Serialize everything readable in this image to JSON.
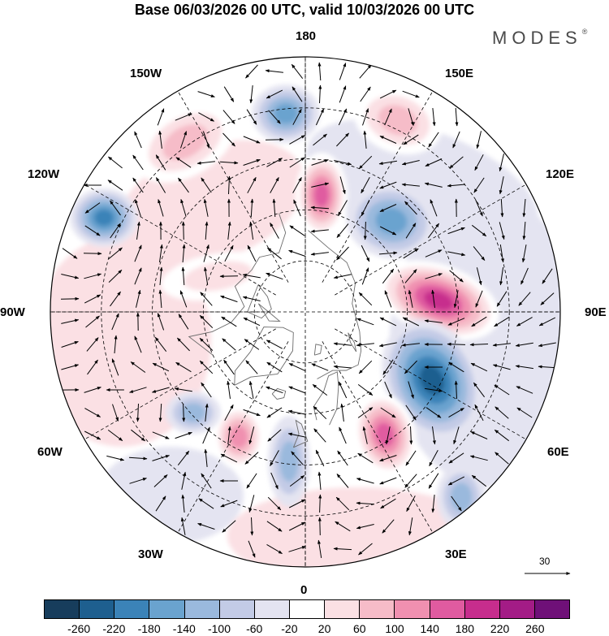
{
  "title": "Base 06/03/2026 00 UTC, valid 10/03/2026 00 UTC",
  "brand": "MODES",
  "brand_mark": "®",
  "longitude_labels": [
    {
      "id": "180",
      "text": "180"
    },
    {
      "id": "150E",
      "text": "150E"
    },
    {
      "id": "120E",
      "text": "120E"
    },
    {
      "id": "90E",
      "text": "90E"
    },
    {
      "id": "60E",
      "text": "60E"
    },
    {
      "id": "30E",
      "text": "30E"
    },
    {
      "id": "0",
      "text": "0"
    },
    {
      "id": "30W",
      "text": "30W"
    },
    {
      "id": "60W",
      "text": "60W"
    },
    {
      "id": "90W",
      "text": "90W"
    },
    {
      "id": "120W",
      "text": "120W"
    },
    {
      "id": "150W",
      "text": "150W"
    }
  ],
  "vector_scale": {
    "label": "30"
  },
  "colorbar": {
    "colors": [
      "#173d5c",
      "#1e5f8f",
      "#3b83b8",
      "#6aa3cf",
      "#9ab9dd",
      "#c3cbe6",
      "#e4e4f1",
      "#ffffff",
      "#fbe0e4",
      "#f6bcc8",
      "#f090b0",
      "#e05ba0",
      "#c72d8d",
      "#a31c86",
      "#6f1078"
    ],
    "labels": [
      "-260",
      "-220",
      "-180",
      "-140",
      "-100",
      "-60",
      "-20",
      "20",
      "60",
      "100",
      "140",
      "180",
      "220",
      "260"
    ]
  },
  "anomalies": [
    {
      "id": "pos-eurasia-90e",
      "value": 240
    },
    {
      "id": "neg-siberia-60e",
      "value": -230
    },
    {
      "id": "pos-scandinavia",
      "value": 190
    },
    {
      "id": "neg-kamchatka",
      "value": -170
    },
    {
      "id": "pos-chukotka",
      "value": 200
    },
    {
      "id": "neg-alaska-gulf",
      "value": -150
    },
    {
      "id": "pos-pacific-150w",
      "value": 110
    },
    {
      "id": "neg-canada-120w",
      "value": -190
    },
    {
      "id": "pos-pacific-150e",
      "value": 130
    },
    {
      "id": "neg-europe-0",
      "value": -130
    },
    {
      "id": "pos-greenland-sea",
      "value": 140
    },
    {
      "id": "neg-labrador",
      "value": -110
    },
    {
      "id": "neg-med-30e",
      "value": -110
    },
    {
      "id": "pos-arctic-canada",
      "value": 70
    }
  ]
}
